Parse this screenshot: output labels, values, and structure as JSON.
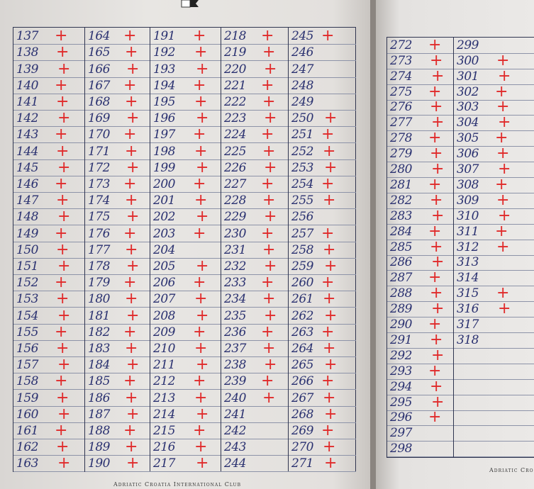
{
  "left_page": {
    "footer": "Adriatic Croatia International Club",
    "columns": [
      {
        "rows": [
          [
            "137",
            "+"
          ],
          [
            "138",
            "+"
          ],
          [
            "139",
            "+"
          ],
          [
            "140",
            "+"
          ],
          [
            "141",
            "+"
          ],
          [
            "142",
            "+"
          ],
          [
            "143",
            "+"
          ],
          [
            "144",
            "+"
          ],
          [
            "145",
            "+"
          ],
          [
            "146",
            "+"
          ],
          [
            "147",
            "+"
          ],
          [
            "148",
            "+"
          ],
          [
            "149",
            "+"
          ],
          [
            "150",
            "+"
          ],
          [
            "151",
            "+"
          ],
          [
            "152",
            "+"
          ],
          [
            "153",
            "+"
          ],
          [
            "154",
            "+"
          ],
          [
            "155",
            "+"
          ],
          [
            "156",
            "+"
          ],
          [
            "157",
            "+"
          ],
          [
            "158",
            "+"
          ],
          [
            "159",
            "+"
          ],
          [
            "160",
            "+"
          ],
          [
            "161",
            "+"
          ],
          [
            "162",
            "+"
          ],
          [
            "163",
            "+"
          ]
        ]
      },
      {
        "rows": [
          [
            "164",
            "+"
          ],
          [
            "165",
            "+"
          ],
          [
            "166",
            "+"
          ],
          [
            "167",
            "+"
          ],
          [
            "168",
            "+"
          ],
          [
            "169",
            "+"
          ],
          [
            "170",
            "+"
          ],
          [
            "171",
            "+"
          ],
          [
            "172",
            "+"
          ],
          [
            "173",
            "+"
          ],
          [
            "174",
            "+"
          ],
          [
            "175",
            "+"
          ],
          [
            "176",
            "+"
          ],
          [
            "177",
            "+"
          ],
          [
            "178",
            "+"
          ],
          [
            "179",
            "+"
          ],
          [
            "180",
            "+"
          ],
          [
            "181",
            "+"
          ],
          [
            "182",
            "+"
          ],
          [
            "183",
            "+"
          ],
          [
            "184",
            "+"
          ],
          [
            "185",
            "+"
          ],
          [
            "186",
            "+"
          ],
          [
            "187",
            "+"
          ],
          [
            "188",
            "+"
          ],
          [
            "189",
            "+"
          ],
          [
            "190",
            "+"
          ]
        ]
      },
      {
        "rows": [
          [
            "191",
            "+"
          ],
          [
            "192",
            "+"
          ],
          [
            "193",
            "+"
          ],
          [
            "194",
            "+"
          ],
          [
            "195",
            "+"
          ],
          [
            "196",
            "+"
          ],
          [
            "197",
            "+"
          ],
          [
            "198",
            "+"
          ],
          [
            "199",
            "+"
          ],
          [
            "200",
            "+"
          ],
          [
            "201",
            "+"
          ],
          [
            "202",
            "+"
          ],
          [
            "203",
            "+"
          ],
          [
            "204",
            ""
          ],
          [
            "205",
            "+"
          ],
          [
            "206",
            "+"
          ],
          [
            "207",
            "+"
          ],
          [
            "208",
            "+"
          ],
          [
            "209",
            "+"
          ],
          [
            "210",
            "+"
          ],
          [
            "211",
            "+"
          ],
          [
            "212",
            "+"
          ],
          [
            "213",
            "+"
          ],
          [
            "214",
            "+"
          ],
          [
            "215",
            "+"
          ],
          [
            "216",
            "+"
          ],
          [
            "217",
            "+"
          ]
        ]
      },
      {
        "rows": [
          [
            "218",
            "+"
          ],
          [
            "219",
            "+"
          ],
          [
            "220",
            "+"
          ],
          [
            "221",
            "+"
          ],
          [
            "222",
            "+"
          ],
          [
            "223",
            "+"
          ],
          [
            "224",
            "+"
          ],
          [
            "225",
            "+"
          ],
          [
            "226",
            "+"
          ],
          [
            "227",
            "+"
          ],
          [
            "228",
            "+"
          ],
          [
            "229",
            "+"
          ],
          [
            "230",
            "+"
          ],
          [
            "231",
            "+"
          ],
          [
            "232",
            "+"
          ],
          [
            "233",
            "+"
          ],
          [
            "234",
            "+"
          ],
          [
            "235",
            "+"
          ],
          [
            "236",
            "+"
          ],
          [
            "237",
            "+"
          ],
          [
            "238",
            "+"
          ],
          [
            "239",
            "+"
          ],
          [
            "240",
            "+"
          ],
          [
            "241",
            ""
          ],
          [
            "242",
            ""
          ],
          [
            "243",
            ""
          ],
          [
            "244",
            ""
          ]
        ]
      },
      {
        "rows": [
          [
            "245",
            "+"
          ],
          [
            "246",
            ""
          ],
          [
            "247",
            ""
          ],
          [
            "248",
            ""
          ],
          [
            "249",
            ""
          ],
          [
            "250",
            "+"
          ],
          [
            "251",
            "+"
          ],
          [
            "252",
            "+"
          ],
          [
            "253",
            "+"
          ],
          [
            "254",
            "+"
          ],
          [
            "255",
            "+"
          ],
          [
            "256",
            ""
          ],
          [
            "257",
            "+"
          ],
          [
            "258",
            "+"
          ],
          [
            "259",
            "+"
          ],
          [
            "260",
            "+"
          ],
          [
            "261",
            "+"
          ],
          [
            "262",
            "+"
          ],
          [
            "263",
            "+"
          ],
          [
            "264",
            "+"
          ],
          [
            "265",
            "+"
          ],
          [
            "266",
            "+"
          ],
          [
            "267",
            "+"
          ],
          [
            "268",
            "+"
          ],
          [
            "269",
            "+"
          ],
          [
            "270",
            "+"
          ],
          [
            "271",
            "+"
          ]
        ]
      }
    ]
  },
  "right_page": {
    "footer": "Adriatic Cro",
    "columns": [
      {
        "rows": [
          [
            "272",
            "+"
          ],
          [
            "273",
            "+"
          ],
          [
            "274",
            "+"
          ],
          [
            "275",
            "+"
          ],
          [
            "276",
            "+"
          ],
          [
            "277",
            "+"
          ],
          [
            "278",
            "+"
          ],
          [
            "279",
            "+"
          ],
          [
            "280",
            "+"
          ],
          [
            "281",
            "+"
          ],
          [
            "282",
            "+"
          ],
          [
            "283",
            "+"
          ],
          [
            "284",
            "+"
          ],
          [
            "285",
            "+"
          ],
          [
            "286",
            "+"
          ],
          [
            "287",
            "+"
          ],
          [
            "288",
            "+"
          ],
          [
            "289",
            "+"
          ],
          [
            "290",
            "+"
          ],
          [
            "291",
            "+"
          ],
          [
            "292",
            "+"
          ],
          [
            "293",
            "+"
          ],
          [
            "294",
            "+"
          ],
          [
            "295",
            "+"
          ],
          [
            "296",
            "+"
          ],
          [
            "297",
            ""
          ],
          [
            "298",
            ""
          ]
        ]
      },
      {
        "rows": [
          [
            "299",
            ""
          ],
          [
            "300",
            "+"
          ],
          [
            "301",
            "+"
          ],
          [
            "302",
            "+"
          ],
          [
            "303",
            "+"
          ],
          [
            "304",
            "+"
          ],
          [
            "305",
            "+"
          ],
          [
            "306",
            "+"
          ],
          [
            "307",
            "+"
          ],
          [
            "308",
            "+"
          ],
          [
            "309",
            "+"
          ],
          [
            "310",
            "+"
          ],
          [
            "311",
            "+"
          ],
          [
            "312",
            "+"
          ],
          [
            "313",
            ""
          ],
          [
            "314",
            ""
          ],
          [
            "315",
            "+"
          ],
          [
            "316",
            "+"
          ],
          [
            "317",
            ""
          ],
          [
            "318",
            ""
          ],
          [
            "",
            ""
          ],
          [
            "",
            ""
          ],
          [
            "",
            ""
          ],
          [
            "",
            ""
          ],
          [
            "",
            ""
          ],
          [
            "",
            ""
          ],
          [
            "",
            ""
          ]
        ]
      }
    ]
  },
  "colors": {
    "ink_blue": "#2a3170",
    "ink_red": "#e02a2a",
    "paper": "#e8e6e3"
  }
}
